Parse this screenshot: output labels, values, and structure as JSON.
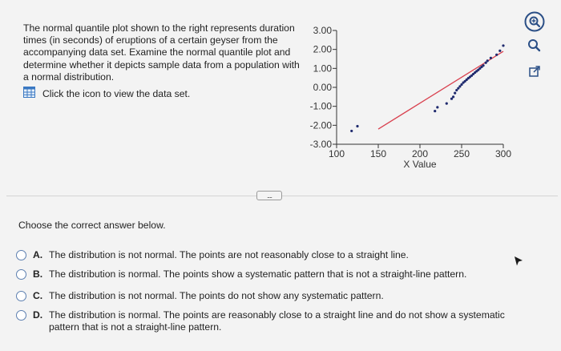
{
  "question": {
    "text": "The normal quantile plot shown to the right represents duration times (in seconds) of eruptions of a certain geyser from the accompanying data set. Examine the normal quantile plot and determine whether it depicts sample data from a population with a normal distribution.",
    "dataset_link": "Click the icon to view the data set."
  },
  "chart_data": {
    "type": "scatter",
    "xlabel": "X Value",
    "ylabel": "",
    "xlim": [
      100,
      300
    ],
    "ylim": [
      -3,
      3
    ],
    "x_ticks": [
      "100",
      "150",
      "200",
      "250",
      "300"
    ],
    "y_ticks": [
      "3.00",
      "2.00",
      "1.00",
      "0.00",
      "-1.00",
      "-2.00",
      "-3.00"
    ],
    "reference_line": {
      "from": [
        150,
        -2.2
      ],
      "to": [
        300,
        1.9
      ],
      "color": "#d9414f"
    },
    "point_color": "#1f2a6e",
    "points": [
      [
        118,
        -2.3
      ],
      [
        125,
        -2.05
      ],
      [
        218,
        -1.25
      ],
      [
        221,
        -1.05
      ],
      [
        232,
        -0.85
      ],
      [
        238,
        -0.6
      ],
      [
        240,
        -0.5
      ],
      [
        242,
        -0.3
      ],
      [
        244,
        -0.15
      ],
      [
        246,
        -0.05
      ],
      [
        248,
        0.05
      ],
      [
        250,
        0.15
      ],
      [
        252,
        0.25
      ],
      [
        254,
        0.32
      ],
      [
        256,
        0.4
      ],
      [
        258,
        0.48
      ],
      [
        260,
        0.55
      ],
      [
        262,
        0.62
      ],
      [
        264,
        0.7
      ],
      [
        266,
        0.78
      ],
      [
        268,
        0.85
      ],
      [
        270,
        0.92
      ],
      [
        272,
        1.0
      ],
      [
        274,
        1.08
      ],
      [
        276,
        1.15
      ],
      [
        279,
        1.3
      ],
      [
        281,
        1.4
      ],
      [
        285,
        1.55
      ],
      [
        292,
        1.72
      ],
      [
        296,
        1.93
      ],
      [
        300,
        2.2
      ]
    ]
  },
  "options_prompt": "Choose the correct answer below.",
  "options": [
    {
      "letter": "A.",
      "text": "The distribution is not normal. The points are not reasonably close to a straight line."
    },
    {
      "letter": "B.",
      "text": "The distribution is normal. The points show a systematic pattern that is not a straight-line pattern."
    },
    {
      "letter": "C.",
      "text": "The distribution is not normal. The points do not show any systematic pattern."
    },
    {
      "letter": "D.",
      "text": "The distribution is normal. The points are reasonably close to a straight line and do not show a systematic pattern that is not a straight-line pattern."
    }
  ],
  "more_button": "....",
  "icons": [
    "zoom-in-icon",
    "search-icon",
    "external-link-icon",
    "data-table-icon",
    "pointer-cursor-icon"
  ],
  "colors": {
    "radio_border": "#5c7fb0",
    "icon_blue": "#2b4f86",
    "grid_icon_blue": "#3a78c2"
  }
}
